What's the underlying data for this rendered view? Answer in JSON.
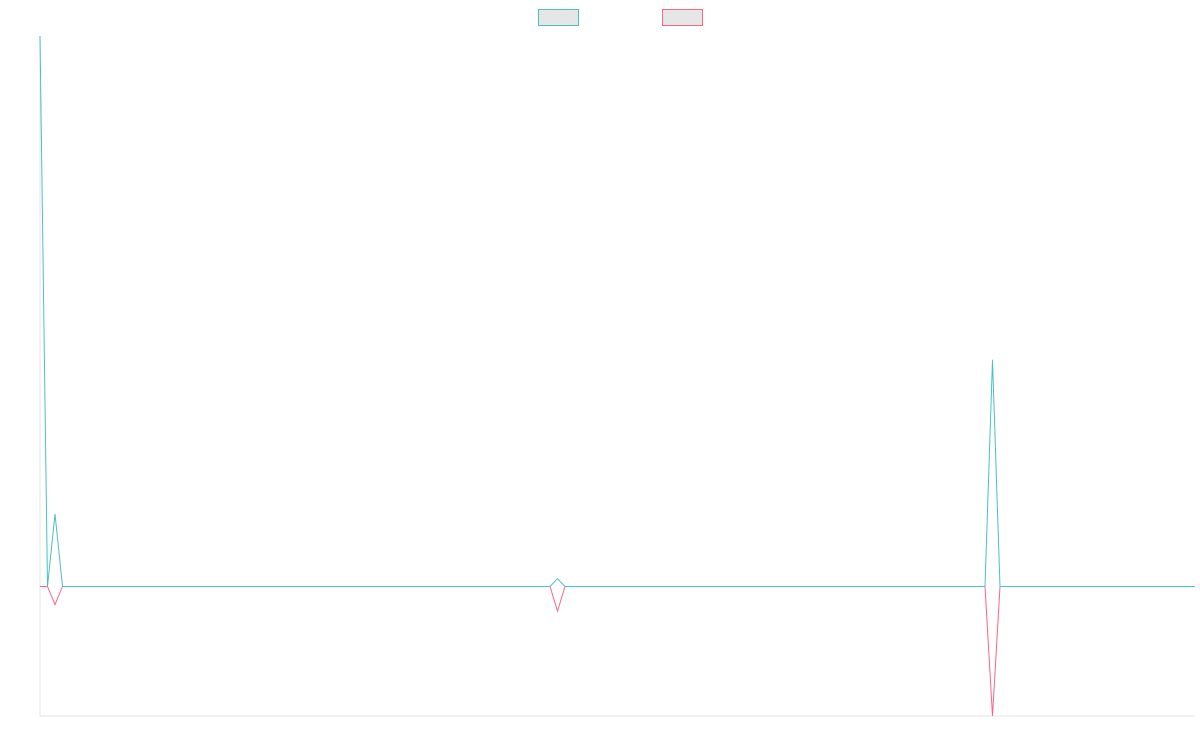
{
  "chart_data": {
    "type": "line",
    "title": "",
    "xlabel": "",
    "ylabel": "",
    "x": [
      0,
      1,
      2,
      3,
      4,
      5,
      6,
      7,
      8,
      9,
      10,
      11,
      12,
      13,
      14,
      15,
      16,
      17,
      18,
      19,
      20,
      21,
      22,
      23,
      24,
      25,
      26,
      27,
      28,
      29,
      30,
      31,
      32,
      33,
      34,
      35,
      36,
      37,
      38,
      39,
      40,
      41,
      42,
      43,
      44,
      45,
      46,
      47,
      48,
      49,
      50,
      51,
      52,
      53,
      54,
      55,
      56,
      57,
      58,
      59,
      60,
      61,
      62,
      63,
      64,
      65,
      66,
      67,
      68,
      69,
      70,
      71,
      72,
      73,
      74,
      75,
      76,
      77,
      78,
      79,
      80,
      81,
      82,
      83,
      84,
      85,
      86,
      87,
      88,
      89,
      90,
      91,
      92,
      93,
      94,
      95,
      96,
      97,
      98,
      99,
      100,
      101,
      102,
      103,
      104,
      105,
      106,
      107,
      108,
      109,
      110,
      111,
      112,
      113,
      114,
      115,
      116,
      117,
      118,
      119,
      120,
      121,
      122,
      123,
      124,
      125,
      126,
      127,
      128,
      129,
      130,
      131,
      132,
      133,
      134,
      135,
      136,
      137,
      138,
      139,
      140,
      141,
      142,
      143,
      144,
      145,
      146,
      147,
      148,
      149,
      150,
      151,
      152,
      153,
      154
    ],
    "ylim": [
      -100,
      425
    ],
    "grid": false,
    "legend": "top-center",
    "series": [
      {
        "color": "#4bc0c0",
        "fill": "#e6e6e6",
        "values": [
          425,
          0,
          56,
          0,
          0,
          0,
          0,
          0,
          0,
          0,
          0,
          0,
          0,
          0,
          0,
          0,
          0,
          0,
          0,
          0,
          0,
          0,
          0,
          0,
          0,
          0,
          0,
          0,
          0,
          0,
          0,
          0,
          0,
          0,
          0,
          0,
          0,
          0,
          0,
          0,
          0,
          0,
          0,
          0,
          0,
          0,
          0,
          0,
          0,
          0,
          0,
          0,
          0,
          0,
          0,
          0,
          0,
          0,
          0,
          0,
          0,
          0,
          0,
          0,
          0,
          0,
          0,
          0,
          0,
          6,
          0,
          0,
          0,
          0,
          0,
          0,
          0,
          0,
          0,
          0,
          0,
          0,
          0,
          0,
          0,
          0,
          0,
          0,
          0,
          0,
          0,
          0,
          0,
          0,
          0,
          0,
          0,
          0,
          0,
          0,
          0,
          0,
          0,
          0,
          0,
          0,
          0,
          0,
          0,
          0,
          0,
          0,
          0,
          0,
          0,
          0,
          0,
          0,
          0,
          0,
          0,
          0,
          0,
          0,
          0,
          0,
          0,
          175,
          0,
          0,
          0,
          0,
          0,
          0,
          0,
          0,
          0,
          0,
          0,
          0,
          0,
          0,
          0,
          0,
          0,
          0,
          0,
          0,
          0,
          0,
          0,
          0,
          0,
          0,
          0
        ]
      },
      {
        "color": "#ff6384",
        "fill": "#e6e6e6",
        "values": [
          0,
          0,
          -14,
          0,
          0,
          0,
          0,
          0,
          0,
          0,
          0,
          0,
          0,
          0,
          0,
          0,
          0,
          0,
          0,
          0,
          0,
          0,
          0,
          0,
          0,
          0,
          0,
          0,
          0,
          0,
          0,
          0,
          0,
          0,
          0,
          0,
          0,
          0,
          0,
          0,
          0,
          0,
          0,
          0,
          0,
          0,
          0,
          0,
          0,
          0,
          0,
          0,
          0,
          0,
          0,
          0,
          0,
          0,
          0,
          0,
          0,
          0,
          0,
          0,
          0,
          0,
          0,
          0,
          0,
          -19,
          0,
          0,
          0,
          0,
          0,
          0,
          0,
          0,
          0,
          0,
          0,
          0,
          0,
          0,
          0,
          0,
          0,
          0,
          0,
          0,
          0,
          0,
          0,
          0,
          0,
          0,
          0,
          0,
          0,
          0,
          0,
          0,
          0,
          0,
          0,
          0,
          0,
          0,
          0,
          0,
          0,
          0,
          0,
          0,
          0,
          0,
          0,
          0,
          0,
          0,
          0,
          0,
          0,
          0,
          0,
          0,
          0,
          -100,
          0,
          0,
          0,
          0,
          0,
          0,
          0,
          0,
          0,
          0,
          0,
          0,
          0,
          0,
          0,
          0,
          0,
          0,
          0,
          0,
          0,
          0,
          0,
          0,
          0,
          0,
          0
        ]
      }
    ]
  }
}
